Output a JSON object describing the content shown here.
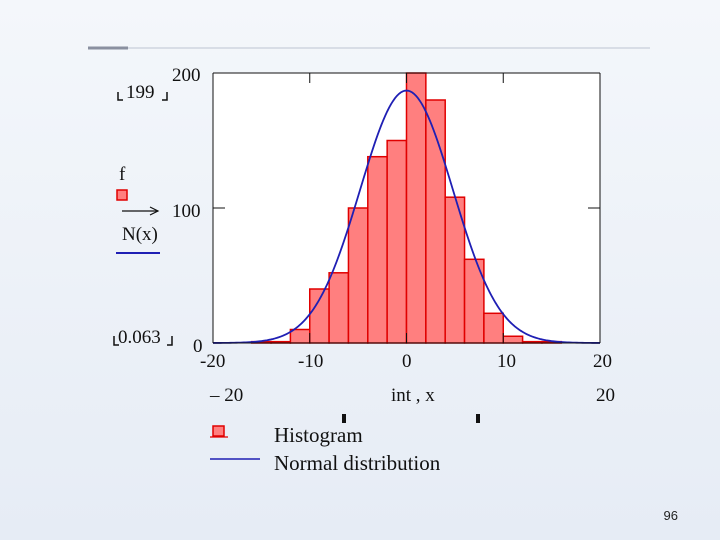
{
  "slide": {
    "page_number": "96"
  },
  "chart_data": {
    "type": "bar",
    "title": "",
    "bin_edges": [
      -20,
      -18,
      -16,
      -14,
      -12,
      -10,
      -8,
      -6,
      -4,
      -2,
      0,
      2,
      4,
      6,
      8,
      10,
      12,
      14,
      16,
      18,
      20
    ],
    "values": [
      0,
      0,
      1,
      1,
      10,
      40,
      52,
      100,
      138,
      150,
      200,
      180,
      108,
      62,
      22,
      5,
      1,
      1,
      0,
      0
    ],
    "series": [
      {
        "name": "Histogram",
        "kind": "bar",
        "color": "#ff7f7f",
        "edge_color": "#e00000"
      },
      {
        "name": "Normal distribution",
        "kind": "line",
        "color": "#1f1fb4",
        "mean": 0,
        "sd": 4.8,
        "peak": 187
      }
    ],
    "xlim": [
      -20,
      20
    ],
    "ylim": [
      0,
      200
    ],
    "x_ticks": [
      -20,
      -10,
      0,
      10,
      20
    ],
    "x_tick_labels": [
      "-20",
      "-10",
      "0",
      "10",
      "20"
    ],
    "y_ticks": [
      0,
      100,
      200
    ],
    "y_tick_labels": [
      "0",
      "100",
      "200"
    ],
    "x_range_labels": {
      "min": "– 20",
      "max": "20"
    },
    "y_range_labels": {
      "max": "199",
      "min": "0.063"
    },
    "xlabel": "int , x",
    "ylabel_top": "f",
    "ylabel_bottom": "N(x)",
    "grid": false,
    "legend_position": "bottom"
  }
}
